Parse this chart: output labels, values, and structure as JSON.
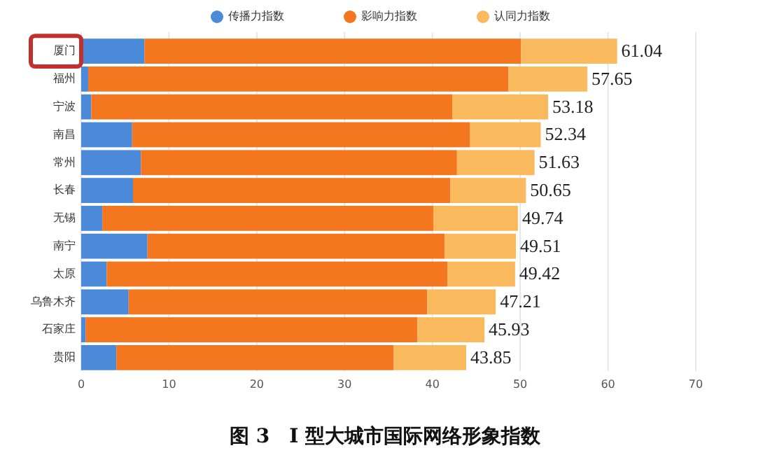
{
  "chart_data": {
    "type": "bar",
    "orientation": "horizontal",
    "stacked": true,
    "title": "图 3　I 型大城市国际网络形象指数",
    "categories": [
      "厦门",
      "福州",
      "宁波",
      "南昌",
      "常州",
      "长春",
      "无锡",
      "南宁",
      "太原",
      "乌鲁木齐",
      "石家庄",
      "贵阳"
    ],
    "series": [
      {
        "name": "传播力指数",
        "color": "#4a8ad8",
        "values": [
          7.2,
          0.8,
          1.15,
          5.8,
          6.8,
          5.9,
          2.4,
          7.55,
          2.9,
          5.4,
          0.5,
          4.0
        ]
      },
      {
        "name": "影响力指数",
        "color": "#f47720",
        "values": [
          42.9,
          47.85,
          41.15,
          38.5,
          36.0,
          36.15,
          37.7,
          33.85,
          38.8,
          34.0,
          37.8,
          31.6
        ]
      },
      {
        "name": "认同力指数",
        "color": "#f9b95c",
        "values": [
          10.94,
          9.0,
          10.88,
          8.04,
          8.83,
          8.6,
          9.64,
          8.11,
          7.72,
          7.81,
          7.63,
          8.25
        ]
      }
    ],
    "totals": [
      "61.04",
      "57.65",
      "53.18",
      "52.34",
      "51.63",
      "50.65",
      "49.74",
      "49.51",
      "49.42",
      "47.21",
      "45.93",
      "43.85"
    ],
    "xlim": [
      0,
      70
    ],
    "xticks": [
      0,
      10,
      20,
      30,
      40,
      50,
      60,
      70
    ],
    "grid": "x",
    "legend": "top"
  }
}
